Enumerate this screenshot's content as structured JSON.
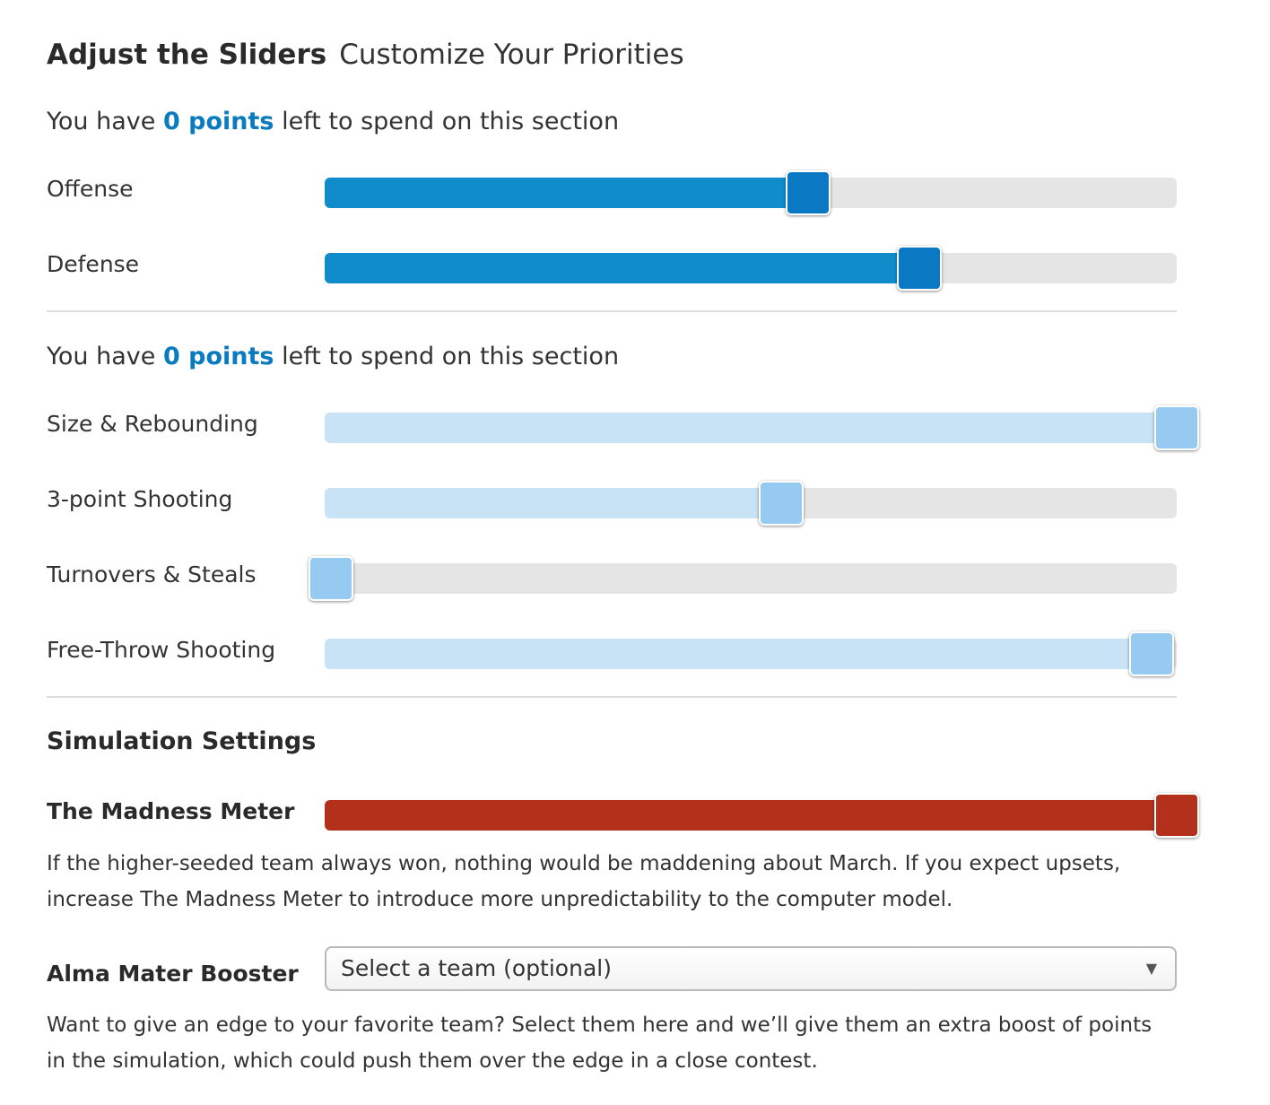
{
  "header": {
    "title": "Adjust the Sliders",
    "subtitle": "Customize Your Priorities"
  },
  "colors": {
    "primary_fill": "#118ccb",
    "primary_thumb": "#0a78c2",
    "light_fill": "#c8e2f6",
    "light_thumb": "#97caf0",
    "track": "#e5e5e5",
    "madness_fill": "#b3311b",
    "madness_thumb": "#b3311b",
    "points_accent": "#0a7ac1"
  },
  "section1": {
    "points_prefix": "You have",
    "points_value": "0 points",
    "points_suffix": "left to spend on this section",
    "sliders": [
      {
        "label": "Offense",
        "value": 0.567
      },
      {
        "label": "Defense",
        "value": 0.698
      }
    ]
  },
  "section2": {
    "points_prefix": "You have",
    "points_value": "0 points",
    "points_suffix": "left to spend on this section",
    "sliders": [
      {
        "label": "Size & Rebounding",
        "value": 1.0
      },
      {
        "label": "3-point Shooting",
        "value": 0.536
      },
      {
        "label": "Turnovers & Steals",
        "value": 0.0
      },
      {
        "label": "Free-Throw Shooting",
        "value": 0.97
      }
    ]
  },
  "simulation": {
    "title": "Simulation Settings",
    "madness": {
      "label": "The Madness Meter",
      "value": 1.0,
      "description": "If the higher-seeded team always won, nothing would be maddening about March. If you expect upsets, increase The Madness Meter to introduce more unpredictability to the computer model."
    },
    "alma_mater": {
      "label": "Alma Mater Booster",
      "selected": "Select a team (optional)",
      "arrow_icon": "triangle-down-icon",
      "description": "Want to give an edge to your favorite team? Select them here and we’ll give them an extra boost of points in the simulation, which could push them over the edge in a close contest."
    }
  }
}
